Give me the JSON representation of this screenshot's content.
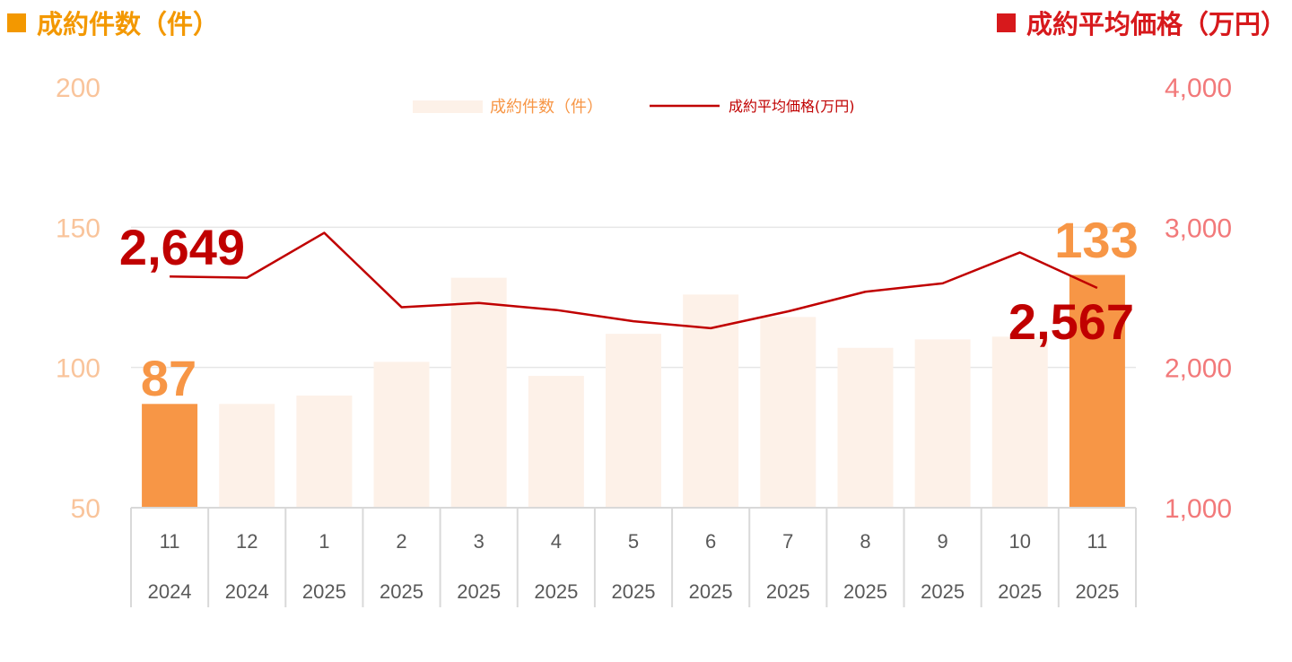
{
  "header": {
    "left_label": "成約件数（件）",
    "right_label": "成約平均価格（万円）"
  },
  "colors": {
    "header_left": "#f39800",
    "header_right": "#d7191c",
    "bar_pale": "#fdf1e8",
    "bar_highlight": "#f79646",
    "line": "#c00000",
    "left_axis_text": "#f9c49b",
    "right_axis_text": "#f2797a",
    "grid": "#e6e6e6"
  },
  "chart_data": {
    "type": "bar+line",
    "categories": [
      {
        "month": "11",
        "year": "2024"
      },
      {
        "month": "12",
        "year": "2024"
      },
      {
        "month": "1",
        "year": "2025"
      },
      {
        "month": "2",
        "year": "2025"
      },
      {
        "month": "3",
        "year": "2025"
      },
      {
        "month": "4",
        "year": "2025"
      },
      {
        "month": "5",
        "year": "2025"
      },
      {
        "month": "6",
        "year": "2025"
      },
      {
        "month": "7",
        "year": "2025"
      },
      {
        "month": "8",
        "year": "2025"
      },
      {
        "month": "9",
        "year": "2025"
      },
      {
        "month": "10",
        "year": "2025"
      },
      {
        "month": "11",
        "year": "2025"
      }
    ],
    "series": [
      {
        "name": "成約件数（件）",
        "type": "bar",
        "axis": "left",
        "values": [
          87,
          87,
          90,
          102,
          132,
          97,
          112,
          126,
          118,
          107,
          110,
          111,
          133
        ],
        "highlight": [
          true,
          false,
          false,
          false,
          false,
          false,
          false,
          false,
          false,
          false,
          false,
          false,
          true
        ]
      },
      {
        "name": "成約平均価格(万円)",
        "type": "line",
        "axis": "right",
        "values": [
          2649,
          2640,
          2960,
          2430,
          2460,
          2410,
          2330,
          2280,
          2400,
          2540,
          2600,
          2820,
          2567
        ]
      }
    ],
    "y_left": {
      "min": 50,
      "max": 200,
      "ticks": [
        "50",
        "100",
        "150",
        "200"
      ]
    },
    "y_right": {
      "min": 1000,
      "max": 4000,
      "ticks": [
        "1,000",
        "2,000",
        "3,000",
        "4,000"
      ]
    },
    "grid": true,
    "legend": "top-center",
    "annotations": {
      "first_bar": "87",
      "last_bar": "133",
      "first_line": "2,649",
      "last_line": "2,567"
    }
  }
}
